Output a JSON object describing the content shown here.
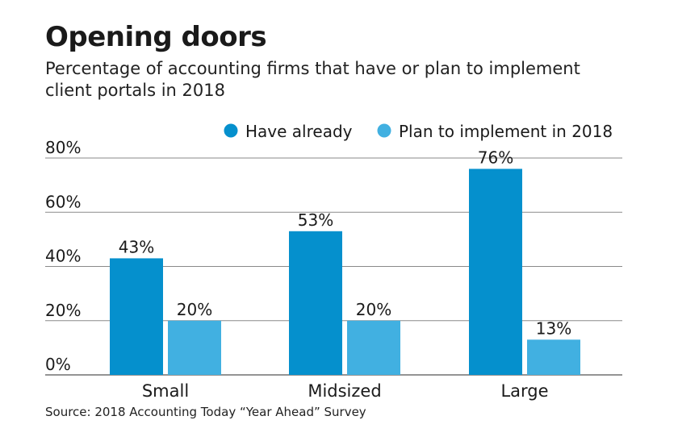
{
  "title": "Opening doors",
  "subtitle": "Percentage of accounting firms that have or plan to implement client portals in 2018",
  "source": "Source: 2018 Accounting Today “Year Ahead” Survey",
  "colors": {
    "have_already": "#0590cd",
    "plan_to_implement": "#41b0e1"
  },
  "chart_data": {
    "type": "bar",
    "categories": [
      "Small",
      "Midsized",
      "Large"
    ],
    "series": [
      {
        "name": "Have already",
        "values": [
          43,
          53,
          76
        ],
        "labels": [
          "43%",
          "53%",
          "76%"
        ]
      },
      {
        "name": "Plan to implement in 2018",
        "values": [
          20,
          20,
          13
        ],
        "labels": [
          "20%",
          "20%",
          "13%"
        ]
      }
    ],
    "yticks": [
      0,
      20,
      40,
      60,
      80
    ],
    "ytick_labels": [
      "0%",
      "20%",
      "40%",
      "60%",
      "80%"
    ],
    "ylim": [
      0,
      80
    ],
    "legend_position": "top-right",
    "grid": true,
    "xlabel": "",
    "ylabel": ""
  }
}
